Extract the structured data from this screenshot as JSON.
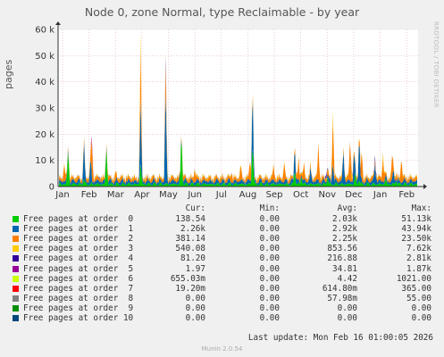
{
  "title": "Node 0, zone Normal, type Reclaimable - by year",
  "watermark": "RRDTOOL / TOBI OETIKER",
  "footer": {
    "last_update": "Last update: Mon Feb 16 01:00:05 2026",
    "version": "Munin 2.0.54"
  },
  "legend": {
    "headers": [
      "Cur:",
      "Min:",
      "Avg:",
      "Max:"
    ],
    "rows": [
      {
        "name": "Free pages at order  0",
        "color": "#00cc00",
        "cur": "138.54",
        "min": "0.00",
        "avg": "2.03k",
        "max": "51.13k"
      },
      {
        "name": "Free pages at order  1",
        "color": "#0066b3",
        "cur": "2.26k",
        "min": "0.00",
        "avg": "2.92k",
        "max": "43.94k"
      },
      {
        "name": "Free pages at order  2",
        "color": "#ff8000",
        "cur": "381.14",
        "min": "0.00",
        "avg": "2.25k",
        "max": "23.50k"
      },
      {
        "name": "Free pages at order  3",
        "color": "#ffcc00",
        "cur": "540.08",
        "min": "0.00",
        "avg": "853.56",
        "max": "7.62k"
      },
      {
        "name": "Free pages at order  4",
        "color": "#330099",
        "cur": "81.20",
        "min": "0.00",
        "avg": "216.88",
        "max": "2.81k"
      },
      {
        "name": "Free pages at order  5",
        "color": "#990099",
        "cur": "1.97",
        "min": "0.00",
        "avg": "34.81",
        "max": "1.87k"
      },
      {
        "name": "Free pages at order  6",
        "color": "#ccff00",
        "cur": "655.03m",
        "min": "0.00",
        "avg": "4.42",
        "max": "1021.00"
      },
      {
        "name": "Free pages at order  7",
        "color": "#ff0000",
        "cur": "19.20m",
        "min": "0.00",
        "avg": "614.80m",
        "max": "365.00"
      },
      {
        "name": "Free pages at order  8",
        "color": "#808080",
        "cur": "0.00",
        "min": "0.00",
        "avg": "57.98m",
        "max": "55.00"
      },
      {
        "name": "Free pages at order  9",
        "color": "#008f00",
        "cur": "0.00",
        "min": "0.00",
        "avg": "0.00",
        "max": "0.00"
      },
      {
        "name": "Free pages at order 10",
        "color": "#00487d",
        "cur": "0.00",
        "min": "0.00",
        "avg": "0.00",
        "max": "0.00"
      }
    ]
  },
  "chart_data": {
    "type": "area",
    "ylabel": "pages",
    "ylim": [
      0,
      60000
    ],
    "yticks": [
      0,
      10000,
      20000,
      30000,
      40000,
      50000,
      60000
    ],
    "ytick_labels": [
      "0",
      "10 k",
      "20 k",
      "30 k",
      "40 k",
      "50 k",
      "60 k"
    ],
    "xtick_labels": [
      "Jan",
      "Feb",
      "Mar",
      "Apr",
      "May",
      "Jun",
      "Jul",
      "Aug",
      "Sep",
      "Oct",
      "Nov",
      "Dec",
      "Jan",
      "Feb"
    ],
    "grid": true,
    "series": [
      {
        "name": "Free pages at order  0",
        "color": "#00cc00",
        "spikes": [
          [
            0.25,
            15000
          ],
          [
            0.85,
            3000
          ],
          [
            1.7,
            16000
          ],
          [
            3.0,
            9000
          ],
          [
            4.55,
            22000
          ],
          [
            7.25,
            18000
          ],
          [
            8.85,
            7000
          ],
          [
            9.1,
            4000
          ],
          [
            10.1,
            4000
          ],
          [
            11.15,
            5000
          ],
          [
            11.3,
            3000
          ],
          [
            12.3,
            3000
          ],
          [
            12.7,
            2500
          ]
        ],
        "base": 1200
      },
      {
        "name": "Free pages at order  1",
        "color": "#0066b3",
        "spikes": [
          [
            0.85,
            15000
          ],
          [
            1.1,
            10000
          ],
          [
            3.0,
            25000
          ],
          [
            3.95,
            38000
          ],
          [
            7.25,
            23000
          ],
          [
            8.85,
            10000
          ],
          [
            9.45,
            6000
          ],
          [
            10.3,
            9000
          ],
          [
            10.7,
            14000
          ],
          [
            11.1,
            12000
          ],
          [
            11.3,
            18000
          ],
          [
            11.9,
            8000
          ],
          [
            12.6,
            6000
          ]
        ],
        "base": 1500
      },
      {
        "name": "Free pages at order  2",
        "color": "#ff8000",
        "spikes": [
          [
            0.1,
            6000
          ],
          [
            1.15,
            15000
          ],
          [
            2.05,
            3000
          ],
          [
            3.0,
            20000
          ],
          [
            3.95,
            10000
          ],
          [
            5.05,
            5000
          ],
          [
            6.45,
            4000
          ],
          [
            6.8,
            6000
          ],
          [
            7.15,
            8000
          ],
          [
            8.05,
            6000
          ],
          [
            8.45,
            7000
          ],
          [
            9.0,
            8000
          ],
          [
            9.2,
            6000
          ],
          [
            9.75,
            14000
          ],
          [
            10.3,
            18000
          ],
          [
            10.95,
            16000
          ],
          [
            11.4,
            12000
          ],
          [
            12.2,
            9000
          ],
          [
            12.55,
            9000
          ],
          [
            12.9,
            10000
          ]
        ],
        "base": 1400
      },
      {
        "name": "Free pages at order  3",
        "color": "#ffcc00",
        "spikes": [
          [
            3.0,
            5000
          ],
          [
            4.0,
            2500
          ],
          [
            7.2,
            2000
          ],
          [
            10.3,
            3000
          ],
          [
            11.0,
            2500
          ],
          [
            12.2,
            2000
          ]
        ],
        "base": 500
      },
      {
        "name": "Free pages at order  4",
        "color": "#330099",
        "spikes": [
          [
            1.45,
            500
          ],
          [
            3.95,
            2000
          ],
          [
            10.05,
            1500
          ],
          [
            11.9,
            1500
          ]
        ],
        "base": 100
      },
      {
        "name": "Free pages at order  5",
        "color": "#990099",
        "spikes": [
          [
            1.15,
            1800
          ],
          [
            3.95,
            1500
          ],
          [
            11.0,
            800
          ]
        ],
        "base": 20
      },
      {
        "name": "Free pages at order  6",
        "color": "#ccff00",
        "spikes": [
          [
            3.95,
            1000
          ],
          [
            11.0,
            500
          ]
        ],
        "base": 2
      },
      {
        "name": "Free pages at order  7",
        "color": "#ff0000",
        "spikes": [
          [
            11.0,
            365
          ]
        ],
        "base": 0
      },
      {
        "name": "Free pages at order  8",
        "color": "#808080",
        "spikes": [
          [
            11.0,
            55
          ]
        ],
        "base": 0
      },
      {
        "name": "Free pages at order  9",
        "color": "#008f00",
        "spikes": [],
        "base": 0
      },
      {
        "name": "Free pages at order 10",
        "color": "#00487d",
        "spikes": [],
        "base": 0
      }
    ]
  }
}
